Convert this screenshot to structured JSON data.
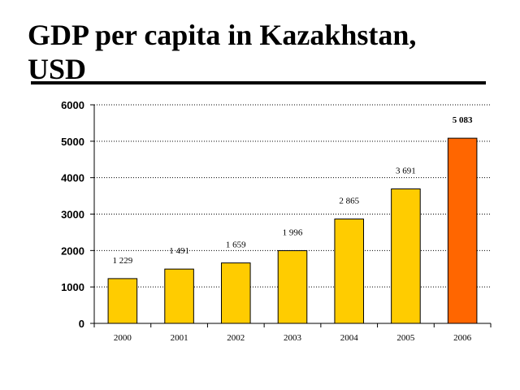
{
  "page": {
    "title_line1": "GDP per capita in Kazakhstan,",
    "title_line2": "USD"
  },
  "chart_data": {
    "type": "bar",
    "title": "GDP per capita in Kazakhstan, USD",
    "xlabel": "",
    "ylabel": "",
    "categories": [
      "2000",
      "2001",
      "2002",
      "2003",
      "2004",
      "2005",
      "2006"
    ],
    "values": [
      1229,
      1491,
      1659,
      1996,
      2865,
      3691,
      5083
    ],
    "data_labels": [
      "1 229",
      "1 491",
      "1 659",
      "1 996",
      "2 865",
      "3 691",
      "5 083"
    ],
    "yticks": [
      0,
      1000,
      2000,
      3000,
      4000,
      5000,
      6000
    ],
    "ylim": [
      0,
      6000
    ],
    "grid": "horizontal dotted",
    "legend": "none",
    "colors": {
      "bar": "#FFCC00",
      "highlight_bar": "#FF6600",
      "bar_outline": "#000000"
    },
    "highlight_category": "2006"
  }
}
